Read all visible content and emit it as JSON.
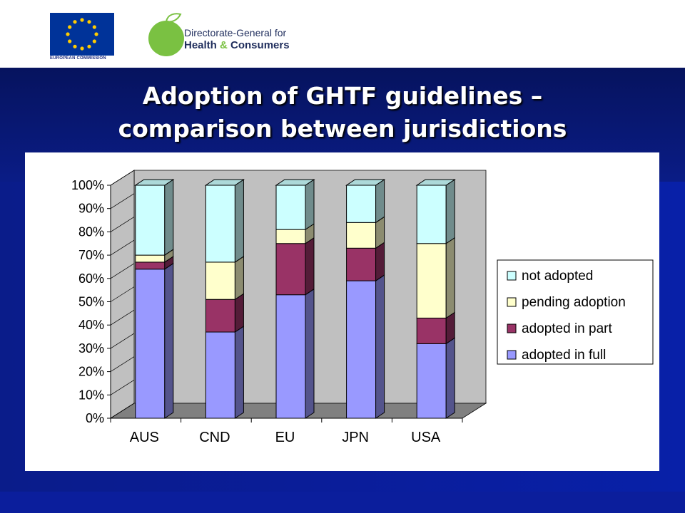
{
  "header": {
    "eu_caption": "EUROPEAN COMMISSION",
    "dg_line1": "Directorate-General for",
    "dg_line2a": "Health ",
    "dg_amp": "&",
    "dg_line2b": " Consumers"
  },
  "slide": {
    "title_line1": "Adoption of GHTF guidelines –",
    "title_line2": "comparison between jurisdictions"
  },
  "colors": {
    "full": "#9999ff",
    "part": "#993366",
    "pending": "#ffffcc",
    "not": "#ccffff"
  },
  "chart_data": {
    "type": "bar",
    "stacked": true,
    "percent": true,
    "three_d": true,
    "categories": [
      "AUS",
      "CND",
      "EU",
      "JPN",
      "USA"
    ],
    "series": [
      {
        "name": "adopted in full",
        "values": [
          64,
          37,
          53,
          59,
          32
        ]
      },
      {
        "name": "adopted in part",
        "values": [
          3,
          14,
          22,
          14,
          11
        ]
      },
      {
        "name": "pending adoption",
        "values": [
          3,
          16,
          6,
          11,
          32
        ]
      },
      {
        "name": "not adopted",
        "values": [
          30,
          33,
          19,
          16,
          25
        ]
      }
    ],
    "legend_order": [
      "not adopted",
      "pending adoption",
      "adopted in part",
      "adopted in full"
    ],
    "ylim": [
      0,
      100
    ],
    "yticks": [
      "0%",
      "10%",
      "20%",
      "30%",
      "40%",
      "50%",
      "60%",
      "70%",
      "80%",
      "90%",
      "100%"
    ],
    "grid": false,
    "legend": "right"
  }
}
